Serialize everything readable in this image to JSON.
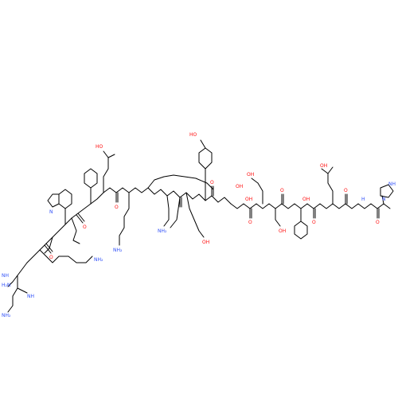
{
  "diagram": {
    "kind": "skeletal-structure",
    "colors": {
      "bond": "#000000",
      "oxygen": "#ff0d0d",
      "nitrogen": "#3050f8",
      "background": "#ffffff"
    },
    "atom_labels": [
      {
        "id": "a1",
        "text": "NH"
      },
      {
        "id": "a2",
        "text": "N"
      },
      {
        "id": "a3",
        "text": "H"
      },
      {
        "id": "a4",
        "text": "O"
      },
      {
        "id": "a5",
        "text": "OH"
      },
      {
        "id": "a6",
        "text": "O"
      },
      {
        "id": "a7",
        "text": "HO"
      },
      {
        "id": "a8",
        "text": "O"
      },
      {
        "id": "a9",
        "text": "OH"
      },
      {
        "id": "a10",
        "text": "O"
      },
      {
        "id": "a11",
        "text": "OH"
      },
      {
        "id": "a12",
        "text": "OH"
      },
      {
        "id": "a13",
        "text": "O"
      },
      {
        "id": "a14",
        "text": "OH"
      },
      {
        "id": "a15",
        "text": "O"
      },
      {
        "id": "a16",
        "text": "HO"
      },
      {
        "id": "a17",
        "text": "NH₂"
      },
      {
        "id": "a18",
        "text": "NH₂"
      },
      {
        "id": "a19",
        "text": "O"
      },
      {
        "id": "a20",
        "text": "N"
      },
      {
        "id": "a21",
        "text": "NH"
      },
      {
        "id": "a22",
        "text": "H₂N"
      },
      {
        "id": "a23",
        "text": "NH"
      },
      {
        "id": "a24",
        "text": "O"
      },
      {
        "id": "a25",
        "text": "OH"
      },
      {
        "id": "a26",
        "text": "OH"
      },
      {
        "id": "a27",
        "text": "NH₂"
      },
      {
        "id": "a28",
        "text": "NH₂"
      },
      {
        "id": "a29",
        "text": "O"
      }
    ]
  }
}
